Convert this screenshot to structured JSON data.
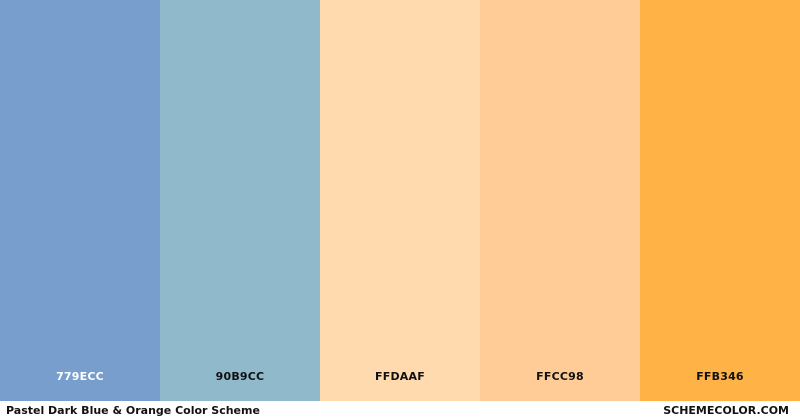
{
  "palette": {
    "swatches": [
      {
        "hex": "779ECC",
        "color": "#779ECC",
        "text_color": "#ffffff"
      },
      {
        "hex": "90B9CC",
        "color": "#90B9CC",
        "text_color": "#111111"
      },
      {
        "hex": "FFDAAF",
        "color": "#FFDAAF",
        "text_color": "#111111"
      },
      {
        "hex": "FFCC98",
        "color": "#FFCC98",
        "text_color": "#111111"
      },
      {
        "hex": "FFB346",
        "color": "#FFB346",
        "text_color": "#111111"
      }
    ]
  },
  "footer": {
    "title": "Pastel Dark Blue & Orange Color Scheme",
    "site": "SCHEMECOLOR.COM"
  }
}
